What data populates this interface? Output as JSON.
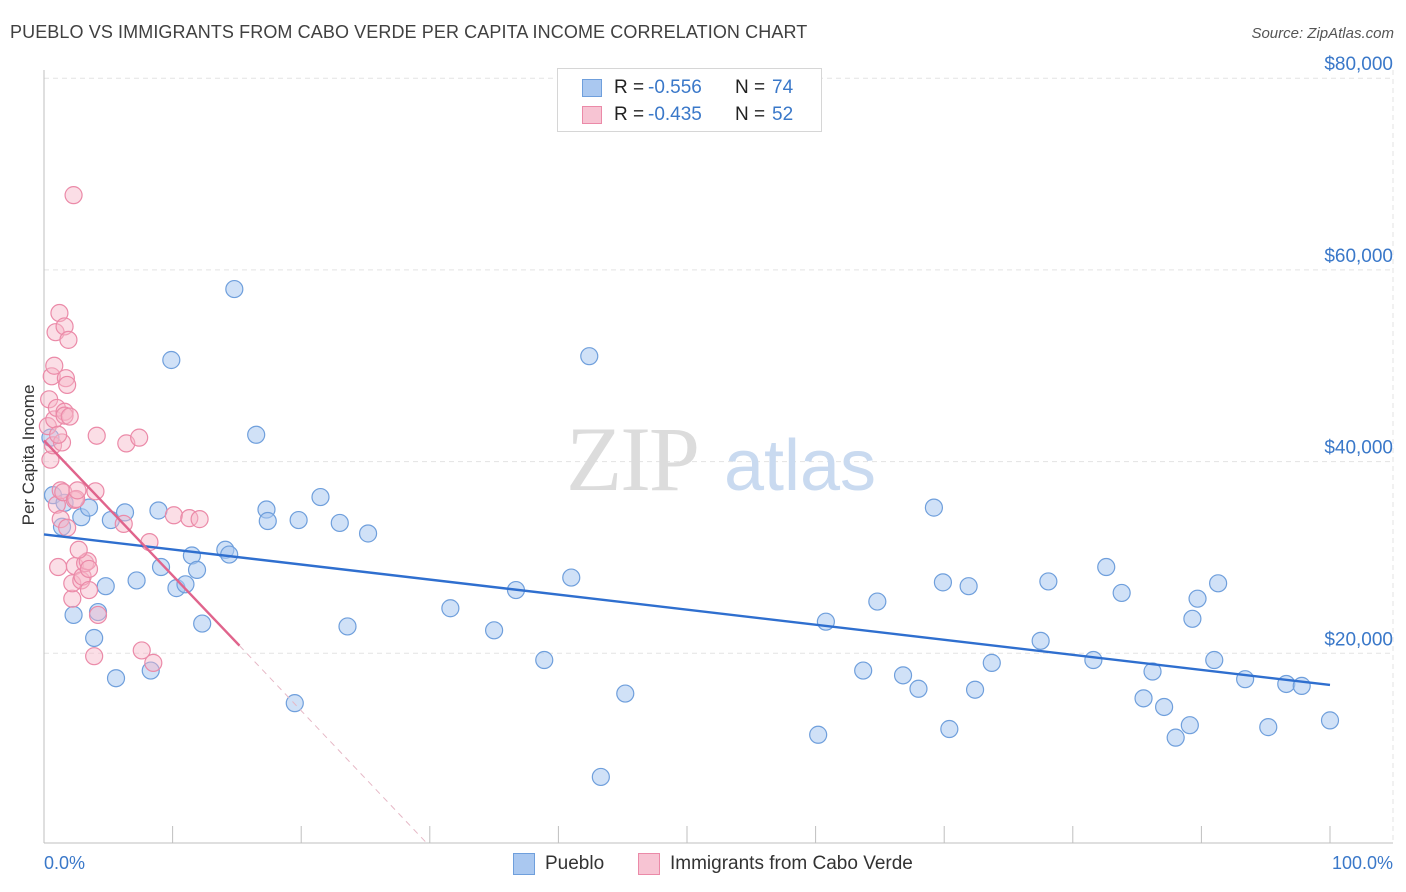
{
  "header": {
    "title": "PUEBLO VS IMMIGRANTS FROM CABO VERDE PER CAPITA INCOME CORRELATION CHART",
    "source": "Source: ZipAtlas.com"
  },
  "legend": {
    "series1": {
      "r_label": "R =",
      "r_value": "-0.556",
      "n_label": "N =",
      "n_value": "74"
    },
    "series2": {
      "r_label": "R =",
      "r_value": "-0.435",
      "n_label": "N =",
      "n_value": "52"
    }
  },
  "watermark": {
    "zip": "ZIP",
    "atlas": "atlas"
  },
  "colors": {
    "blue_fill": "#aac8f0",
    "blue_stroke": "#6f9fdc",
    "blue_line": "#2f6fcf",
    "pink_fill": "#f7b6c8",
    "pink_stroke": "#eb8aa8",
    "pink_line": "#e0648c",
    "grid": "#e3e3e3",
    "tick_text": "#3a78c9"
  },
  "chart_data": {
    "type": "scatter",
    "title": "PUEBLO VS IMMIGRANTS FROM CABO VERDE PER CAPITA INCOME CORRELATION CHART",
    "xlabel": "",
    "ylabel": "Per Capita Income",
    "xlim": [
      0,
      100
    ],
    "ylim": [
      0,
      82000
    ],
    "y_ticks": [
      {
        "value": 20000,
        "label": "$20,000"
      },
      {
        "value": 40000,
        "label": "$40,000"
      },
      {
        "value": 60000,
        "label": "$60,000"
      },
      {
        "value": 80000,
        "label": "$80,000"
      }
    ],
    "x_tick_labels": {
      "min": "0.0%",
      "max": "100.0%"
    },
    "x_minor_ticks": [
      10,
      20,
      30,
      40,
      50,
      60,
      70,
      80,
      90,
      100
    ],
    "series": [
      {
        "name": "Pueblo",
        "color": "#6f9fdc",
        "points": [
          [
            0.5,
            42500
          ],
          [
            0.7,
            36500
          ],
          [
            1.4,
            33200
          ],
          [
            1.6,
            35700
          ],
          [
            2.3,
            24000
          ],
          [
            2.9,
            34200
          ],
          [
            3.5,
            35200
          ],
          [
            3.9,
            21600
          ],
          [
            4.2,
            24300
          ],
          [
            4.8,
            27000
          ],
          [
            5.2,
            33900
          ],
          [
            5.6,
            17400
          ],
          [
            6.3,
            34700
          ],
          [
            7.2,
            27600
          ],
          [
            8.3,
            18200
          ],
          [
            8.9,
            34900
          ],
          [
            9.1,
            29000
          ],
          [
            9.9,
            50600
          ],
          [
            10.3,
            26800
          ],
          [
            11.0,
            27200
          ],
          [
            11.5,
            30200
          ],
          [
            11.9,
            28700
          ],
          [
            12.3,
            23100
          ],
          [
            14.1,
            30800
          ],
          [
            14.4,
            30300
          ],
          [
            14.8,
            58000
          ],
          [
            16.5,
            42800
          ],
          [
            17.3,
            35000
          ],
          [
            17.4,
            33800
          ],
          [
            19.5,
            14800
          ],
          [
            19.8,
            33900
          ],
          [
            21.5,
            36300
          ],
          [
            23.0,
            33600
          ],
          [
            23.6,
            22800
          ],
          [
            25.2,
            32500
          ],
          [
            31.6,
            24700
          ],
          [
            35.0,
            22400
          ],
          [
            36.7,
            26600
          ],
          [
            38.9,
            19300
          ],
          [
            41.0,
            27900
          ],
          [
            42.4,
            51000
          ],
          [
            43.3,
            7100
          ],
          [
            45.2,
            15800
          ],
          [
            60.2,
            11500
          ],
          [
            60.8,
            23300
          ],
          [
            63.7,
            18200
          ],
          [
            64.8,
            25400
          ],
          [
            66.8,
            17700
          ],
          [
            68.0,
            16300
          ],
          [
            69.2,
            35200
          ],
          [
            69.9,
            27400
          ],
          [
            70.4,
            12100
          ],
          [
            71.9,
            27000
          ],
          [
            72.4,
            16200
          ],
          [
            73.7,
            19000
          ],
          [
            77.5,
            21300
          ],
          [
            78.1,
            27500
          ],
          [
            81.6,
            19300
          ],
          [
            82.6,
            29000
          ],
          [
            83.8,
            26300
          ],
          [
            85.5,
            15300
          ],
          [
            86.2,
            18100
          ],
          [
            87.1,
            14400
          ],
          [
            88.0,
            11200
          ],
          [
            89.1,
            12500
          ],
          [
            89.3,
            23600
          ],
          [
            89.7,
            25700
          ],
          [
            91.0,
            19300
          ],
          [
            91.3,
            27300
          ],
          [
            93.4,
            17300
          ],
          [
            95.2,
            12300
          ],
          [
            96.6,
            16800
          ],
          [
            97.8,
            16600
          ],
          [
            100.0,
            13000
          ]
        ]
      },
      {
        "name": "Immigrants from Cabo Verde",
        "color": "#eb8aa8",
        "points": [
          [
            0.3,
            43700
          ],
          [
            0.4,
            46500
          ],
          [
            0.5,
            40200
          ],
          [
            0.6,
            48900
          ],
          [
            0.7,
            41700
          ],
          [
            0.8,
            44400
          ],
          [
            0.8,
            50000
          ],
          [
            0.9,
            53500
          ],
          [
            1.0,
            45600
          ],
          [
            1.0,
            35500
          ],
          [
            1.1,
            29000
          ],
          [
            1.2,
            55500
          ],
          [
            1.3,
            37000
          ],
          [
            1.3,
            34000
          ],
          [
            1.4,
            42000
          ],
          [
            1.5,
            36800
          ],
          [
            1.6,
            45200
          ],
          [
            1.6,
            44800
          ],
          [
            1.6,
            54100
          ],
          [
            1.7,
            48700
          ],
          [
            1.8,
            48000
          ],
          [
            1.8,
            33100
          ],
          [
            1.9,
            52700
          ],
          [
            2.0,
            44700
          ],
          [
            2.2,
            25700
          ],
          [
            2.2,
            27300
          ],
          [
            2.3,
            67800
          ],
          [
            2.4,
            29100
          ],
          [
            2.4,
            36000
          ],
          [
            2.5,
            36100
          ],
          [
            2.6,
            37000
          ],
          [
            2.9,
            27600
          ],
          [
            3.0,
            28000
          ],
          [
            3.2,
            29400
          ],
          [
            3.4,
            29600
          ],
          [
            3.5,
            28800
          ],
          [
            3.5,
            26600
          ],
          [
            3.9,
            19700
          ],
          [
            4.0,
            36900
          ],
          [
            4.1,
            42700
          ],
          [
            4.2,
            24000
          ],
          [
            6.2,
            33500
          ],
          [
            6.4,
            41900
          ],
          [
            7.4,
            42500
          ],
          [
            7.6,
            20300
          ],
          [
            8.2,
            31600
          ],
          [
            8.5,
            19000
          ],
          [
            10.1,
            34400
          ],
          [
            11.3,
            34100
          ],
          [
            12.1,
            34000
          ],
          [
            2.7,
            30800
          ],
          [
            1.1,
            42800
          ]
        ]
      }
    ],
    "trendlines": [
      {
        "series": "Pueblo",
        "from": [
          0,
          32400
        ],
        "to": [
          100,
          16700
        ],
        "style": "solid"
      },
      {
        "series": "Immigrants from Cabo Verde",
        "from": [
          0,
          42200
        ],
        "to": [
          15.2,
          20800
        ],
        "style": "solid"
      },
      {
        "series": "Immigrants from Cabo Verde",
        "from": [
          15.2,
          20800
        ],
        "to": [
          29.9,
          0
        ],
        "style": "dashed"
      }
    ]
  },
  "bottom_legend": {
    "item1": "Pueblo",
    "item2": "Immigrants from Cabo Verde"
  }
}
